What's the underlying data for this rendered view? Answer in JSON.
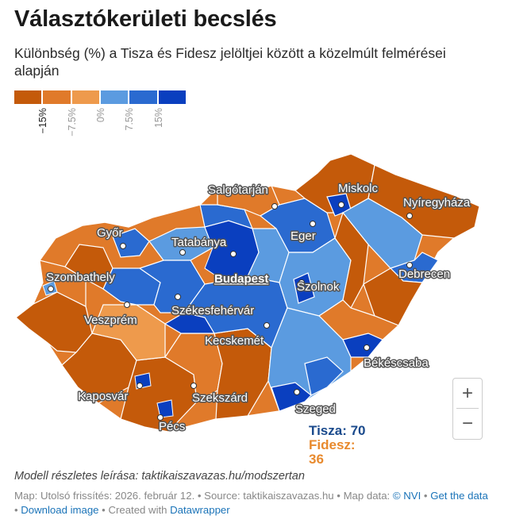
{
  "title": "Választókerületi becslés",
  "subtitle": "Különbség (%) a Tisza és Fidesz jelöltjei között a közelmúlt felmérései alapján",
  "legend": {
    "colors": [
      "#c45a0a",
      "#e07a2a",
      "#ee9a4c",
      "#5b9be0",
      "#2a6ad0",
      "#0a3fbf"
    ],
    "ticks": [
      "−15%",
      "−7.5%",
      "0%",
      "7.5%",
      "15%"
    ]
  },
  "cities": {
    "salgotarjan": "Salgótarján",
    "miskolc": "Miskolc",
    "nyiregyhaza": "Nyíregyháza",
    "gyor": "Győr",
    "tatabanya": "Tatabánya",
    "eger": "Eger",
    "budapest": "Budapest",
    "szombathely": "Szombathely",
    "debrecen": "Debrecen",
    "szolnok": "Szolnok",
    "szekesfehervar": "Székesfehérvár",
    "veszprem": "Veszprém",
    "kecskemet": "Kecskemét",
    "bekescsaba": "Békéscsaba",
    "kaposvar": "Kaposvár",
    "szekszard": "Szekszárd",
    "szeged": "Szeged",
    "pecs": "Pécs"
  },
  "seats": {
    "tisza": "Tisza: 70",
    "fidesz_label": "Fidesz:",
    "fidesz_value": "36"
  },
  "zoom": {
    "in": "+",
    "out": "−"
  },
  "model_note": "Modell részletes leírása: taktikaiszavazas.hu/modszertan",
  "footer": {
    "prefix": "Map: Utolsó frissítés: 2026. február 12. • Source: taktikaiszavazas.hu • Map data: ",
    "nvi": "© NVI",
    "sep1": " • ",
    "get_data": "Get the data",
    "sep2": " • ",
    "download": "Download image",
    "sep3": " • Created with ",
    "datawrapper": "Datawrapper"
  }
}
